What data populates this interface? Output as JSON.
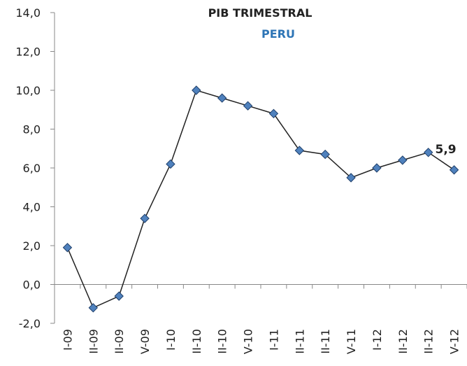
{
  "chart_data": {
    "type": "line",
    "title": "PIB TRIMESTRAL",
    "subtitle": "PERU",
    "categories": [
      "I-09",
      "II-09",
      "II-09",
      "V-09",
      "I-10",
      "II-10",
      "II-10",
      "V-10",
      "I-11",
      "II-11",
      "II-11",
      "V-11",
      "I-12",
      "II-12",
      "II-12",
      "V-12"
    ],
    "series": [
      {
        "name": "PIB",
        "color": "#4f81bd",
        "values": [
          1.9,
          -1.2,
          -0.6,
          3.4,
          6.2,
          10.0,
          9.6,
          9.2,
          8.8,
          6.9,
          6.7,
          5.5,
          6.0,
          6.4,
          6.8,
          5.9
        ],
        "value_labels": [
          null,
          null,
          null,
          null,
          null,
          null,
          null,
          null,
          null,
          null,
          null,
          null,
          null,
          null,
          null,
          "5,9"
        ]
      }
    ],
    "ylim": [
      -2,
      14
    ],
    "yticks": [
      {
        "value": -2,
        "label": "-2,0"
      },
      {
        "value": 0,
        "label": "0,0"
      },
      {
        "value": 2,
        "label": "2,0"
      },
      {
        "value": 4,
        "label": "4,0"
      },
      {
        "value": 6,
        "label": "6,0"
      },
      {
        "value": 8,
        "label": "8,0"
      },
      {
        "value": 10,
        "label": "10,0"
      },
      {
        "value": 12,
        "label": "12,0"
      },
      {
        "value": 14,
        "label": "14,0"
      }
    ],
    "grid": false
  }
}
